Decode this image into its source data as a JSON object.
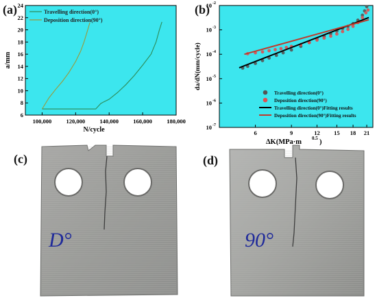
{
  "panels": {
    "a": "(a)",
    "b": "(b)",
    "c": "(c)",
    "d": "(d)"
  },
  "photos": {
    "c": {
      "marking": "D°"
    },
    "d": {
      "marking": "90°"
    }
  },
  "chart_data": [
    {
      "type": "line",
      "xlabel": "N/cycle",
      "ylabel": "a/mm",
      "xlim": [
        90000,
        180000
      ],
      "ylim": [
        6,
        24
      ],
      "xticks": [
        100000,
        120000,
        140000,
        160000,
        180000
      ],
      "xtick_labels": [
        "100,000",
        "120,000",
        "140,000",
        "160,000",
        "180,000"
      ],
      "yticks": [
        6,
        8,
        10,
        12,
        14,
        16,
        18,
        20,
        22,
        24
      ],
      "yticks_labeled": [
        6,
        8,
        10,
        12,
        14,
        16,
        18,
        20,
        22,
        24
      ],
      "legend_position": "top-left",
      "background_color": "#3ce6ee",
      "series": [
        {
          "name": "Travelling direction(0°)",
          "color": "#2e8b57",
          "x": [
            100000,
            132000,
            135000,
            137000,
            140000,
            145000,
            150000,
            155000,
            160000,
            165000,
            168000,
            170000,
            171500
          ],
          "y": [
            7,
            7,
            7.9,
            8.2,
            8.6,
            9.7,
            11.0,
            12.5,
            14.2,
            16.0,
            18.0,
            20.0,
            21.3
          ]
        },
        {
          "name": "Deposition direction(90°)",
          "color": "#9a9a3a",
          "x": [
            100000,
            104000,
            108000,
            112000,
            116000,
            120000,
            123000,
            125000,
            127000,
            128500
          ],
          "y": [
            7,
            8.8,
            10.2,
            11.5,
            13.0,
            14.8,
            16.5,
            18.0,
            19.8,
            21.2
          ]
        }
      ]
    },
    {
      "type": "scatter",
      "xlabel": "ΔK(MPa·m",
      "xlabel_sup": "0.5",
      "xlabel_end": ")",
      "ylabel": "da/dN(mm/cycle)",
      "xscale": "log",
      "yscale": "log",
      "xlim": [
        4,
        22.5
      ],
      "ylim": [
        1e-07,
        0.01
      ],
      "xticks": [
        6,
        9,
        12,
        15,
        18,
        21
      ],
      "xtick_labels": [
        "6",
        "9",
        "12",
        "15",
        "18",
        "21"
      ],
      "yticks": [
        1e-07,
        1e-06,
        1e-05,
        0.0001,
        0.001,
        0.01
      ],
      "ytick_labels": [
        "10",
        "10",
        "10",
        "10",
        "10",
        "10"
      ],
      "ytick_exponents": [
        "-7",
        "-6",
        "-5",
        "-4",
        "-3",
        "-2"
      ],
      "background_color": "#3ce6ee",
      "legend_position": "bottom-right",
      "series": [
        {
          "name": "Travelling direction(0°)",
          "kind": "points",
          "color": "#555555",
          "x": [
            5.2,
            5.5,
            6.0,
            6.5,
            7.0,
            7.6,
            8.2,
            9.0,
            10.0,
            11.0,
            12.0,
            13.0,
            14.0,
            15.0,
            16.0,
            17.0,
            18.0,
            19.0,
            20.0,
            20.5,
            21.0
          ],
          "y": [
            2.7e-05,
            3.2e-05,
            4.2e-05,
            5.5e-05,
            7e-05,
            9e-05,
            0.000115,
            0.00015,
            0.00021,
            0.0003,
            0.00042,
            0.00055,
            0.0007,
            0.0009,
            0.00115,
            0.0014,
            0.0018,
            0.0025,
            0.004,
            0.006,
            0.009
          ]
        },
        {
          "name": "Deposition direction(90°)",
          "kind": "points",
          "color": "#e05050",
          "x": [
            5.5,
            6.0,
            6.5,
            7.0,
            7.5,
            8.0,
            8.5,
            9.0,
            10.0,
            11.0,
            12.0,
            13.0,
            14.0,
            15.0,
            16.0,
            17.0,
            18.0,
            19.0,
            20.0,
            20.8,
            21.3
          ],
          "y": [
            0.000105,
            0.000115,
            0.000125,
            0.00014,
            0.000155,
            0.00017,
            0.00019,
            0.00021,
            0.00025,
            0.0003,
            0.00038,
            0.00046,
            0.00055,
            0.00068,
            0.00085,
            0.00105,
            0.0014,
            0.002,
            0.0032,
            0.005,
            0.0065
          ]
        },
        {
          "name": "Travelling direction(0°)Fitting results",
          "kind": "line",
          "color": "#000000",
          "x": [
            5.0,
            21.5
          ],
          "y": [
            2.8e-05,
            0.0032
          ]
        },
        {
          "name": "Deposition direction(90°)Fitting results",
          "kind": "line",
          "color": "#c0392b",
          "x": [
            5.3,
            21.5
          ],
          "y": [
            0.0001,
            0.0026
          ]
        }
      ]
    }
  ]
}
